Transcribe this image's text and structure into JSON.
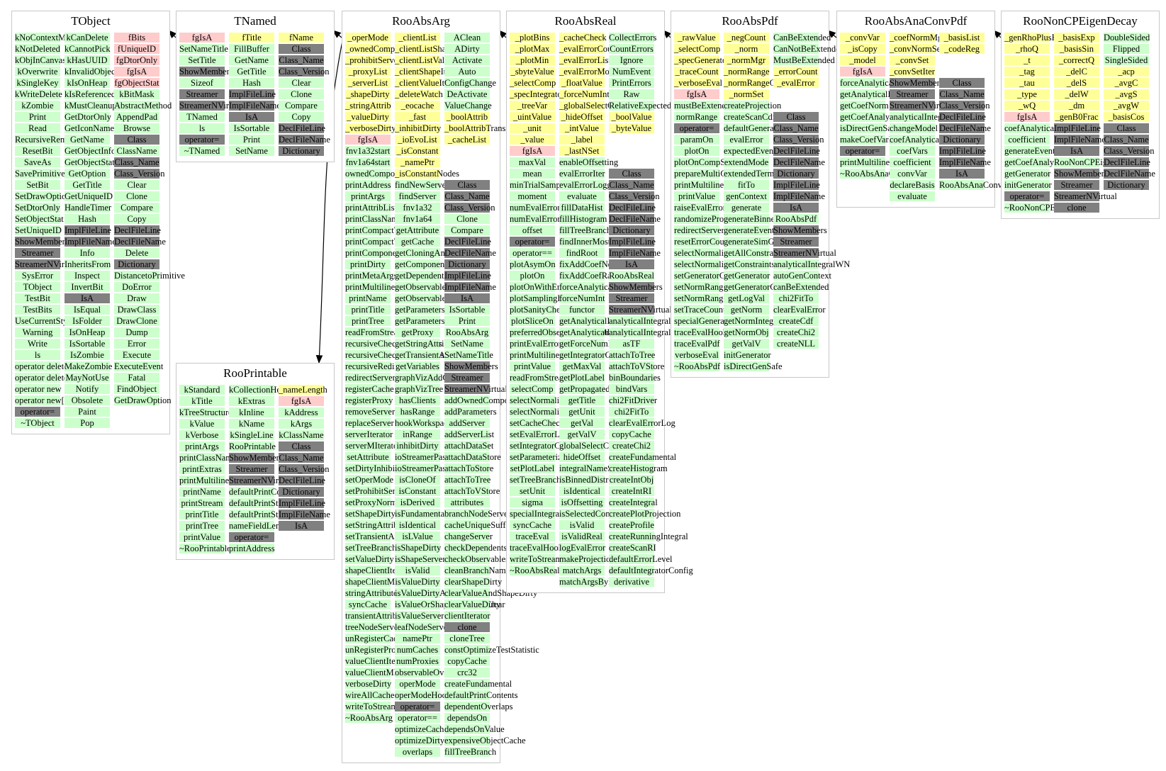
{
  "colors": {
    "public": "#ccffcc",
    "protected": "#ffff99",
    "private": "#ffcccc",
    "special": "#808080",
    "border": "#c8c8c8",
    "edge": "#000000"
  },
  "edges": [
    {
      "from": "TNamed",
      "to": "TObject"
    },
    {
      "from": "RooAbsArg",
      "to": "TNamed"
    },
    {
      "from": "RooAbsArg",
      "to": "RooPrintable"
    },
    {
      "from": "RooAbsReal",
      "to": "RooAbsArg"
    },
    {
      "from": "RooAbsPdf",
      "to": "RooAbsReal"
    },
    {
      "from": "RooAbsAnaConvPdf",
      "to": "RooAbsPdf"
    },
    {
      "from": "RooNonCPEigenDecay",
      "to": "RooAbsAnaConvPdf"
    }
  ],
  "classes": [
    {
      "name": "TObject",
      "cols": [
        [
          "kNoContextMenu",
          "kNotDeleted",
          "kObjInCanvas",
          "kOverwrite",
          "kSingleKey",
          "kWriteDelete",
          "kZombie",
          "Print",
          "Read",
          "RecursiveRemove",
          "ResetBit",
          "SaveAs",
          "SavePrimitive",
          "SetBit",
          "SetDrawOption",
          "SetDtorOnly",
          "SetObjectStat",
          "SetUniqueID",
          "ShowMembers",
          "Streamer",
          "StreamerNVirtual",
          "SysError",
          "TObject",
          "TestBit",
          "TestBits",
          "UseCurrentStyle",
          "Warning",
          "Write",
          "ls",
          "operator delete",
          "operator delete[]",
          "operator new",
          "operator new[]",
          "operator=",
          "~TObject"
        ],
        [
          "kCanDelete",
          "kCannotPick",
          "kHasUUID",
          "kInvalidObject",
          "kIsOnHeap",
          "kIsReferenced",
          "kMustCleanup",
          "GetDtorOnly",
          "GetIconName",
          "GetName",
          "GetObjectInfo",
          "GetObjectStat",
          "GetOption",
          "GetTitle",
          "GetUniqueID",
          "HandleTimer",
          "Hash",
          "ImplFileLine",
          "ImplFileName",
          "Info",
          "InheritsFrom",
          "Inspect",
          "InvertBit",
          "IsA",
          "IsEqual",
          "IsFolder",
          "IsOnHeap",
          "IsSortable",
          "IsZombie",
          "MakeZombie",
          "MayNotUse",
          "Notify",
          "Obsolete",
          "Paint",
          "Pop"
        ],
        [
          "fBits",
          "fUniqueID",
          "fgDtorOnly",
          "fgIsA",
          "fgObjectStat",
          "kBitMask",
          "AbstractMethod",
          "AppendPad",
          "Browse",
          "Class",
          "ClassName",
          "Class_Name",
          "Class_Version",
          "Clear",
          "Clone",
          "Compare",
          "Copy",
          "DeclFileLine",
          "DeclFileName",
          "Delete",
          "Dictionary",
          "DistancetoPrimitive",
          "DoError",
          "Draw",
          "DrawClass",
          "DrawClone",
          "Dump",
          "Error",
          "Execute",
          "ExecuteEvent",
          "Fatal",
          "FindObject",
          "GetDrawOption"
        ]
      ]
    },
    {
      "name": "TNamed",
      "cols": [
        [
          "fgIsA",
          "SetNameTitle",
          "SetTitle",
          "ShowMembers",
          "Sizeof",
          "Streamer",
          "StreamerNVirtual",
          "TNamed",
          "ls",
          "operator=",
          "~TNamed"
        ],
        [
          "fTitle",
          "FillBuffer",
          "GetName",
          "GetTitle",
          "Hash",
          "ImplFileLine",
          "ImplFileName",
          "IsA",
          "IsSortable",
          "Print",
          "SetName"
        ],
        [
          "fName",
          "Class",
          "Class_Name",
          "Class_Version",
          "Clear",
          "Clone",
          "Compare",
          "Copy",
          "DeclFileLine",
          "DeclFileName",
          "Dictionary"
        ]
      ]
    },
    {
      "name": "RooAbsArg",
      "cols": [
        [
          "_operMode",
          "_ownedComponents",
          "_prohibitServerRedirect",
          "_proxyList",
          "_serverList",
          "_shapeDirty",
          "_stringAttrib",
          "_valueDirty",
          "_verboseDirty",
          "fgIsA",
          "fnv1a32start",
          "fnv1a64start",
          "ownedComponents",
          "printAddress",
          "printArgs",
          "printAttribList",
          "printClassName",
          "printCompactTree",
          "printCompactTreeHook",
          "printComponentTree",
          "printDirty",
          "printMetaArgs",
          "printMultiline",
          "printName",
          "printTitle",
          "printTree",
          "readFromStream",
          "recursiveCheckDependents",
          "recursiveCheckObservables",
          "recursiveRedirectServers",
          "redirectServersHook",
          "registerCache",
          "registerProxy",
          "removeServer",
          "replaceServer",
          "serverIterator",
          "serverMIterator",
          "setAttribute",
          "setDirtyInhibit",
          "setOperMode",
          "setProhibitServerRedirect",
          "setProxyNormSet",
          "setShapeDirty",
          "setStringAttribute",
          "setTransientAttribute",
          "setTreeBranchStatus",
          "setValueDirty",
          "shapeClientIterator",
          "shapeClientMIterator",
          "stringAttributes",
          "syncCache",
          "transientAttributes",
          "treeNodeServerList",
          "unRegisterCache",
          "unRegisterProxy",
          "valueClientIterator",
          "valueClientMIterator",
          "verboseDirty",
          "wireAllCaches",
          "writeToStream",
          "~RooAbsArg"
        ],
        [
          "_clientList",
          "_clientListShape",
          "_clientListValue",
          "_clientShapeIter",
          "_clientValueIter",
          "_deleteWatch",
          "_eocache",
          "_fast",
          "_inhibitDirty",
          "_ioEvoList",
          "_isConstant",
          "_namePtr",
          "_isConstantNodes",
          "findNewServer",
          "findServer",
          "fnv1a32",
          "fnv1a64",
          "getAttribute",
          "getCache",
          "getCloningAncestors",
          "getComponents",
          "getDependents",
          "getObservables",
          "getObservablesHook",
          "getParameters",
          "getParametersHook",
          "getProxy",
          "getStringAttribute",
          "getTransientAttribute",
          "getVariables",
          "graphVizAddConnections",
          "graphVizTree",
          "hasClients",
          "hasRange",
          "hookWorkspaceHook",
          "inRange",
          "inhibitDirty",
          "ioStreamerPass2",
          "ioStreamerPass2Finalize",
          "isCloneOf",
          "isConstant",
          "isDerived",
          "isFundamental",
          "isIdentical",
          "isLValue",
          "isShapeDirty",
          "isShapeServer",
          "isValid",
          "isValueDirty",
          "isValueDirtyAndClear",
          "isValueOrShapeDirtyAndClear",
          "isValueServer",
          "leafNodeServerList",
          "namePtr",
          "numCaches",
          "numProxies",
          "observableOverlaps",
          "operMode",
          "operModeHook",
          "operator=",
          "operator==",
          "optimizeCacheMode",
          "optimizeDirtyHook",
          "overlaps"
        ],
        [
          "AClean",
          "ADirty",
          "Activate",
          "Auto",
          "ConfigChange",
          "DeActivate",
          "ValueChange",
          "_boolAttrib",
          "_boolAttribTransient",
          "_cacheList",
          "",
          "",
          "",
          "Class",
          "Class_Name",
          "Class_Version",
          "Clone",
          "Compare",
          "DeclFileLine",
          "DeclFileName",
          "Dictionary",
          "ImplFileLine",
          "ImplFileName",
          "IsA",
          "IsSortable",
          "Print",
          "RooAbsArg",
          "SetName",
          "SetNameTitle",
          "ShowMembers",
          "Streamer",
          "StreamerNVirtual",
          "addOwnedComponents",
          "addParameters",
          "addServer",
          "addServerList",
          "attachDataSet",
          "attachDataStore",
          "attachToStore",
          "attachToTree",
          "attachToVStore",
          "attributes",
          "branchNodeServerList",
          "cacheUniqueSuffix",
          "changeServer",
          "checkDependents",
          "checkObservables",
          "cleanBranchNames",
          "clearShapeDirty",
          "clearValueAndShapeDirty",
          "clearValueDirty",
          "clientIterator",
          "clone",
          "cloneTree",
          "constOptimizeTestStatistic",
          "copyCache",
          "crc32",
          "createFundamental",
          "defaultPrintContents",
          "dependentOverlaps",
          "dependsOn",
          "dependsOnValue",
          "expensiveObjectCache",
          "fillTreeBranch"
        ]
      ]
    },
    {
      "name": "RooAbsReal",
      "cols": [
        [
          "_plotBins",
          "_plotMax",
          "_plotMin",
          "_sbyteValue",
          "_selectComp",
          "_specIntegratorConfig",
          "_treeVar",
          "_uintValue",
          "_unit",
          "_value",
          "fgIsA",
          "maxVal",
          "mean",
          "minTrialSamples",
          "moment",
          "numEvalErrorItems",
          "numEvalErrors",
          "offset",
          "operator=",
          "operator==",
          "plotAsymOn",
          "plotOn",
          "plotOnWithErrorBand",
          "plotSamplingHint",
          "plotSanityChecks",
          "plotSliceOn",
          "preferredObservableScanOrder",
          "printEvalErrors",
          "printMultiline",
          "printValue",
          "readFromStream",
          "selectComp",
          "selectNormalization",
          "selectNormalizationRange",
          "setCacheCheck",
          "setEvalErrorLoggingMode",
          "setIntegratorConfig",
          "setParameterizeIntegral",
          "setPlotLabel",
          "setTreeBranchStatus",
          "setUnit",
          "sigma",
          "specialIntegratorConfig",
          "syncCache",
          "traceEval",
          "traceEvalHook",
          "writeToStream",
          "~RooAbsReal"
        ],
        [
          "_cacheCheck",
          "_evalErrorCount",
          "_evalErrorList",
          "_evalErrorMode",
          "_floatValue",
          "_forceNumInt",
          "_globalSelectComp",
          "_hideOffset",
          "_intValue",
          "_label",
          "_lastNSet",
          "enableOffsetting",
          "evalErrorIter",
          "evalErrorLoggingMode",
          "evaluate",
          "fillDataHist",
          "fillHistogram",
          "fillTreeBranch",
          "findInnerMostIntegration",
          "findRoot",
          "fixAddCoefNormalization",
          "fixAddCoefRange",
          "forceAnalyticalInt",
          "forceNumInt",
          "functor",
          "getAnalyticalIntegral",
          "getAnalyticalIntegralWN",
          "getForceNumInt",
          "getIntegratorConfig",
          "getMaxVal",
          "getPlotLabel",
          "getPropagatedError",
          "getTitle",
          "getUnit",
          "getVal",
          "getValV",
          "globalSelectComp",
          "hideOffset",
          "integralNameSuffix",
          "isBinnedDistribution",
          "isIdentical",
          "isOffsetting",
          "isSelectedComp",
          "isValid",
          "isValidReal",
          "logEvalError",
          "makeProjectionSet",
          "matchArgs",
          "matchArgsByName"
        ],
        [
          "CollectErrors",
          "CountErrors",
          "Ignore",
          "NumEvent",
          "PrintErrors",
          "Raw",
          "RelativeExpected",
          "_boolValue",
          "_byteValue",
          "",
          "",
          "",
          "Class",
          "Class_Name",
          "Class_Version",
          "DeclFileLine",
          "DeclFileName",
          "Dictionary",
          "ImplFileLine",
          "ImplFileName",
          "IsA",
          "RooAbsReal",
          "ShowMembers",
          "Streamer",
          "StreamerNVirtual",
          "analyticalIntegral",
          "analyticalIntegralWN",
          "asTF",
          "attachToTree",
          "attachToVStore",
          "binBoundaries",
          "bindVars",
          "chi2FitDriver",
          "chi2FitTo",
          "clearEvalErrorLog",
          "copyCache",
          "createChi2",
          "createFundamental",
          "createHistogram",
          "createIntObj",
          "createIntRI",
          "createIntegral",
          "createPlotProjection",
          "createProfile",
          "createRunningIntegral",
          "createScanRI",
          "defaultErrorLevel",
          "defaultIntegratorConfig",
          "derivative"
        ]
      ]
    },
    {
      "name": "RooAbsPdf",
      "cols": [
        [
          "_rawValue",
          "_selectComp",
          "_specGeneratorConfig",
          "_traceCount",
          "_verboseEval",
          "fgIsA",
          "mustBeExtended",
          "normRange",
          "operator=",
          "paramOn",
          "plotOn",
          "plotOnCompSelect",
          "prepareMultiGen",
          "printMultiline",
          "printValue",
          "raiseEvalError",
          "randomizeProtoOrder",
          "redirectServersHook",
          "resetErrorCounters",
          "selectNormalization",
          "selectNormalizationRange",
          "setGeneratorConfig",
          "setNormRange",
          "setNormRangeOverride",
          "setTraceCounter",
          "specialGeneratorConfig",
          "traceEvalHook",
          "traceEvalPdf",
          "verboseEval",
          "~RooAbsPdf"
        ],
        [
          "_negCount",
          "_norm",
          "_normMgr",
          "_normRange",
          "_normRangeOverride",
          "_normSet",
          "createProjection",
          "createScanCdf",
          "defaultGeneratorConfig",
          "evalError",
          "expectedEvents",
          "extendMode",
          "extendedTerm",
          "fitTo",
          "genContext",
          "generate",
          "generateBinned",
          "generateEvent",
          "generateSimGlobal",
          "getAllConstraints",
          "getConstraints",
          "getGenerator",
          "getGeneratorConfig",
          "getLogVal",
          "getNorm",
          "getNormIntegral",
          "getNormObj",
          "getValV",
          "initGenerator",
          "isDirectGenSafe"
        ],
        [
          "CanBeExtended",
          "CanNotBeExtended",
          "MustBeExtended",
          "_errorCount",
          "_evalError",
          "",
          "",
          "Class",
          "Class_Name",
          "Class_Version",
          "DeclFileLine",
          "DeclFileName",
          "Dictionary",
          "ImplFileLine",
          "ImplFileName",
          "IsA",
          "RooAbsPdf",
          "ShowMembers",
          "Streamer",
          "StreamerNVirtual",
          "analyticalIntegralWN",
          "autoGenContext",
          "canBeExtended",
          "chi2FitTo",
          "clearEvalError",
          "createCdf",
          "createChi2",
          "createNLL"
        ]
      ]
    },
    {
      "name": "RooAbsAnaConvPdf",
      "cols": [
        [
          "_convVar",
          "_isCopy",
          "_model",
          "fgIsA",
          "forceAnalyticalInt",
          "getAnalyticalIntegralWN",
          "getCoefNorm",
          "getCoefAnalyticalIntegral",
          "isDirectGenSafe",
          "makeCoefVarList",
          "operator=",
          "printMultiline",
          "~RooAbsAnaConvPdf"
        ],
        [
          "_coefNormMgr",
          "_convNormSet",
          "_convSet",
          "_convSetIter",
          "ShowMembers",
          "Streamer",
          "StreamerNVirtual",
          "analyticalIntegralWN",
          "changeModel",
          "coefAnalyticalIntegral",
          "coefVars",
          "coefficient",
          "convVar",
          "declareBasis",
          "evaluate"
        ],
        [
          "_basisList",
          "_codeReg",
          "",
          "",
          "Class",
          "Class_Name",
          "Class_Version",
          "DeclFileLine",
          "DeclFileName",
          "Dictionary",
          "ImplFileLine",
          "ImplFileName",
          "IsA",
          "RooAbsAnaConvPdf"
        ]
      ]
    },
    {
      "name": "RooNonCPEigenDecay",
      "cols": [
        [
          "_genRhoPlusFrac",
          "_rhoQ",
          "_t",
          "_tag",
          "_tau",
          "_type",
          "_wQ",
          "fgIsA",
          "coefAnalyticalIntegral",
          "coefficient",
          "generateEvent",
          "getCoefAnalyticalIntegral",
          "getGenerator",
          "initGenerator",
          "operator=",
          "~RooNonCPEigenDecay"
        ],
        [
          "_basisExp",
          "_basisSin",
          "_correctQ",
          "_delC",
          "_delS",
          "_delW",
          "_dm",
          "_genB0Frac",
          "ImplFileLine",
          "ImplFileName",
          "IsA",
          "RooNonCPEigenDecay",
          "ShowMembers",
          "Streamer",
          "StreamerNVirtual",
          "clone"
        ],
        [
          "DoubleSided",
          "Flipped",
          "SingleSided",
          "_acp",
          "_avgC",
          "_avgS",
          "_avgW",
          "_basisCos",
          "Class",
          "Class_Name",
          "Class_Version",
          "DeclFileLine",
          "DeclFileName",
          "Dictionary"
        ]
      ]
    },
    {
      "name": "RooPrintable",
      "cols": [
        [
          "kStandard",
          "kTitle",
          "kTreeStructure",
          "kValue",
          "kVerbose",
          "printArgs",
          "printClassName",
          "printExtras",
          "printMultiline",
          "printName",
          "printStream",
          "printTitle",
          "printTree",
          "printValue",
          "~RooPrintable"
        ],
        [
          "kCollectionHeader",
          "kExtras",
          "kInline",
          "kName",
          "kSingleLine",
          "RooPrintable",
          "ShowMembers",
          "Streamer",
          "StreamerNVirtual",
          "defaultPrintContents",
          "defaultPrintStream",
          "defaultPrintStyle",
          "nameFieldLength",
          "operator=",
          "printAddress"
        ],
        [
          "_nameLength",
          "fgIsA",
          "kAddress",
          "kArgs",
          "kClassName",
          "Class",
          "Class_Name",
          "Class_Version",
          "DeclFileLine",
          "Dictionary",
          "ImplFileLine",
          "ImplFileName",
          "IsA"
        ]
      ]
    }
  ]
}
